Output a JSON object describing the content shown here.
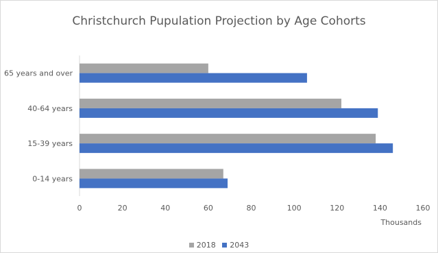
{
  "chart_data": {
    "type": "bar",
    "orientation": "horizontal",
    "title": "Christchurch Pupulation Projection by Age Cohorts",
    "xlabel": "Thousands",
    "ylabel": "",
    "categories": [
      "0-14 years",
      "15-39 years",
      "40-64 years",
      "65 years and over"
    ],
    "series": [
      {
        "name": "2018",
        "color": "#a5a5a5",
        "values": [
          67,
          138,
          122,
          60
        ]
      },
      {
        "name": "2043",
        "color": "#4472c4",
        "values": [
          69,
          146,
          139,
          106
        ]
      }
    ],
    "xlim": [
      0,
      160
    ],
    "xticks": [
      "0",
      "20",
      "40",
      "60",
      "80",
      "100",
      "120",
      "140",
      "160"
    ],
    "grid": false,
    "legend_position": "bottom"
  }
}
